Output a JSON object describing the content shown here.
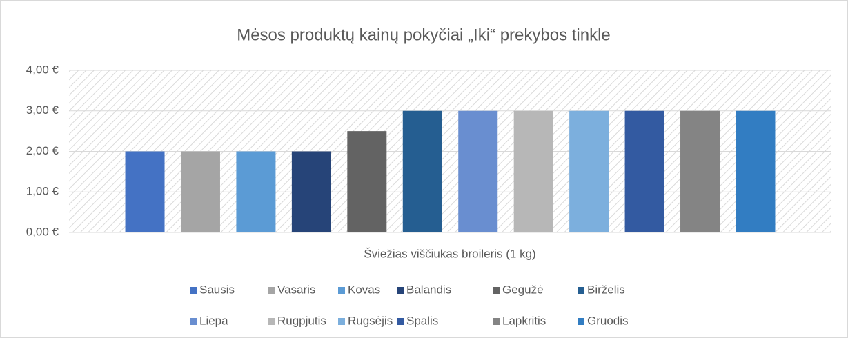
{
  "chart_data": {
    "type": "bar",
    "title": "Mėsos produktų kainų pokyčiai „Iki“ prekybos tinkle",
    "categories": [
      "Šviežias viščiukas broileris (1 kg)"
    ],
    "series": [
      {
        "name": "Sausis",
        "color": "#4472c4",
        "values": [
          2
        ]
      },
      {
        "name": "Vasaris",
        "color": "#a5a5a5",
        "values": [
          2
        ]
      },
      {
        "name": "Kovas",
        "color": "#5b9bd5",
        "values": [
          2
        ]
      },
      {
        "name": "Balandis",
        "color": "#264478",
        "values": [
          2
        ]
      },
      {
        "name": "Gegužė",
        "color": "#636363",
        "values": [
          2.5
        ]
      },
      {
        "name": "Birželis",
        "color": "#255e91",
        "values": [
          3
        ]
      },
      {
        "name": "Liepa",
        "color": "#698ed0",
        "values": [
          3
        ]
      },
      {
        "name": "Rugpjūtis",
        "color": "#b7b7b7",
        "values": [
          3
        ]
      },
      {
        "name": "Rugsėjis",
        "color": "#7cafdd",
        "values": [
          3
        ]
      },
      {
        "name": "Spalis",
        "color": "#335aa1",
        "values": [
          3
        ]
      },
      {
        "name": "Lapkritis",
        "color": "#848484",
        "values": [
          3
        ]
      },
      {
        "name": "Gruodis",
        "color": "#327dc2",
        "values": [
          3
        ]
      }
    ],
    "ylim": [
      0,
      4
    ],
    "yticks": [
      {
        "value": 0,
        "label": "0,00 €"
      },
      {
        "value": 1,
        "label": "1,00 €"
      },
      {
        "value": 2,
        "label": "2,00 €"
      },
      {
        "value": 3,
        "label": "3,00 €"
      },
      {
        "value": 4,
        "label": "4,00 €"
      }
    ],
    "grid": true,
    "legend": "bottom"
  }
}
